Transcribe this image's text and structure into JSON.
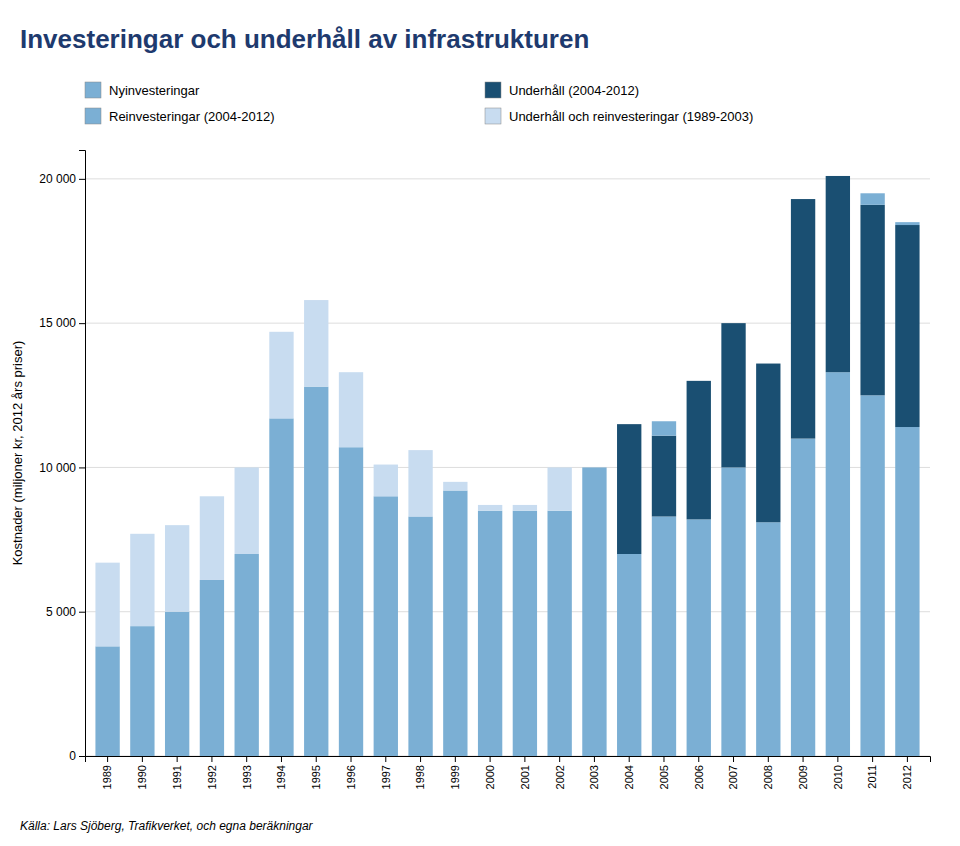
{
  "chart_data": {
    "type": "bar",
    "stacked": true,
    "title": "Investeringar och underhåll av infrastrukturen",
    "y_label": "Kostnader (miljoner kr, 2012 års priser)",
    "annotations": [
      "Källa: Lars Sjöberg, Trafikverket, och egna beräkningar"
    ],
    "categories": [
      1989,
      1990,
      1991,
      1992,
      1993,
      1994,
      1995,
      1996,
      1997,
      1998,
      1999,
      2000,
      2001,
      2002,
      2003,
      2004,
      2005,
      2006,
      2007,
      2008,
      2009,
      2010,
      2011,
      2012
    ],
    "series": [
      {
        "name": "Nyinvesteringar",
        "color": "#7BAFD4",
        "values": [
          3800,
          4500,
          5000,
          6100,
          7000,
          11700,
          12800,
          10700,
          9000,
          8300,
          9200,
          8500,
          8500,
          8500,
          10000,
          0,
          0,
          0,
          0,
          0,
          0,
          0,
          0,
          0
        ]
      },
      {
        "name": "Underhåll och reinvesteringar (1989-2003)",
        "color": "#C8DCF0",
        "values": [
          2900,
          3200,
          3000,
          2900,
          3000,
          3000,
          3000,
          2600,
          1100,
          2300,
          300,
          200,
          200,
          1500,
          0,
          0,
          0,
          0,
          0,
          0,
          0,
          0,
          0,
          0
        ]
      },
      {
        "name": "Reinvesteringar (2004-2012)",
        "color": "#7BAFD4",
        "values": [
          0,
          0,
          0,
          0,
          0,
          0,
          0,
          0,
          0,
          0,
          0,
          0,
          0,
          0,
          0,
          7000,
          8300,
          8200,
          10000,
          8100,
          11000,
          13300,
          12500,
          11400
        ]
      },
      {
        "name": "Underhåll (2004-2012)",
        "color": "#1A4F72",
        "values": [
          0,
          0,
          0,
          0,
          0,
          0,
          0,
          0,
          0,
          0,
          0,
          0,
          0,
          0,
          0,
          4500,
          2800,
          4800,
          5000,
          5500,
          8300,
          6800,
          6600,
          7000
        ]
      },
      {
        "name": "Nyinvesteringar",
        "color": "#7BAFD4",
        "values": [
          0,
          0,
          0,
          0,
          0,
          0,
          0,
          0,
          0,
          0,
          0,
          0,
          0,
          0,
          0,
          0,
          500,
          0,
          0,
          0,
          0,
          0,
          400,
          100
        ]
      }
    ],
    "ylim": [
      0,
      21000
    ],
    "yticks": [
      0,
      {
        "value": 5000,
        "label": "5 000"
      },
      {
        "value": 10000,
        "label": "10 000"
      },
      {
        "value": 15000,
        "label": "15 000"
      },
      {
        "value": 20000,
        "label": "20 000"
      }
    ],
    "grid": true,
    "legend": "top"
  }
}
